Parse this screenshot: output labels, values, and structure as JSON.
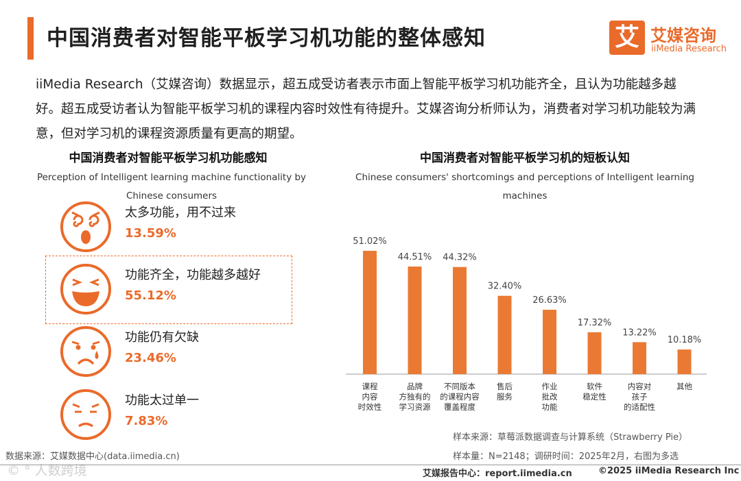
{
  "header": {
    "title": "中国消费者对智能平板学习机功能的整体感知",
    "logo_mark": "艾",
    "logo_cn": "艾媒咨询",
    "logo_en": "iiMedia Research",
    "accent_color": "#ea6a2a"
  },
  "intro": "iiMedia Research（艾媒咨询）数据显示，超五成受访者表示市面上智能平板学习机功能齐全，且认为功能越多越好。超五成受访者认为智能平板学习机的课程内容时效性有待提升。艾媒咨询分析师认为，消费者对学习机功能较为满意，但对学习机的课程资源质量有更高的期望。",
  "left_panel": {
    "title": "中国消费者对智能平板学习机功能感知",
    "subtitle": "Perception of Intelligent learning machine functionality by Chinese consumers",
    "items": [
      {
        "label": "太多功能，用不过来",
        "value": "13.59%",
        "icon": "dizzy-face-icon"
      },
      {
        "label": "功能齐全，功能越多越好",
        "value": "55.12%",
        "icon": "laughing-face-icon"
      },
      {
        "label": "功能仍有欠缺",
        "value": "23.46%",
        "icon": "crying-face-icon"
      },
      {
        "label": "功能太过单一",
        "value": "7.83%",
        "icon": "disappointed-face-icon"
      }
    ]
  },
  "chart_data": {
    "type": "bar",
    "title": "中国消费者对智能平板学习机的短板认知",
    "subtitle": "Chinese consumers' shortcomings and perceptions of Intelligent learning machines",
    "categories": [
      [
        "课程",
        "内容",
        "时效性"
      ],
      [
        "品牌",
        "方独有的",
        "学习资源"
      ],
      [
        "不同版本",
        "的课程内容",
        "覆盖程度"
      ],
      [
        "售后",
        "服务"
      ],
      [
        "作业",
        "批改",
        "功能"
      ],
      [
        "软件",
        "稳定性"
      ],
      [
        "内容对",
        "孩子",
        "的适配性"
      ],
      [
        "其他"
      ]
    ],
    "values": [
      51.02,
      44.51,
      44.32,
      32.4,
      26.63,
      17.32,
      13.22,
      10.18
    ],
    "value_labels": [
      "51.02%",
      "44.51%",
      "44.32%",
      "32.40%",
      "26.63%",
      "17.32%",
      "13.22%",
      "10.18%"
    ],
    "ylim": [
      0,
      55
    ],
    "bar_color": "#ea7a33",
    "xlabel": "",
    "ylabel": ""
  },
  "notes": {
    "sample_source": "样本来源：草莓派数据调查与计算系统（Strawberry Pie）",
    "sample_size": "样本量：N=2148；调研时间：2025年2月，右图为多选",
    "data_source": "数据来源：艾媒数据中心(data.iimedia.cn)",
    "watermark": "© ° 人数跨境"
  },
  "footer": {
    "report": "艾媒报告中心：report.iimedia.cn",
    "copyright": "©2025  iiMedia Research  Inc"
  }
}
